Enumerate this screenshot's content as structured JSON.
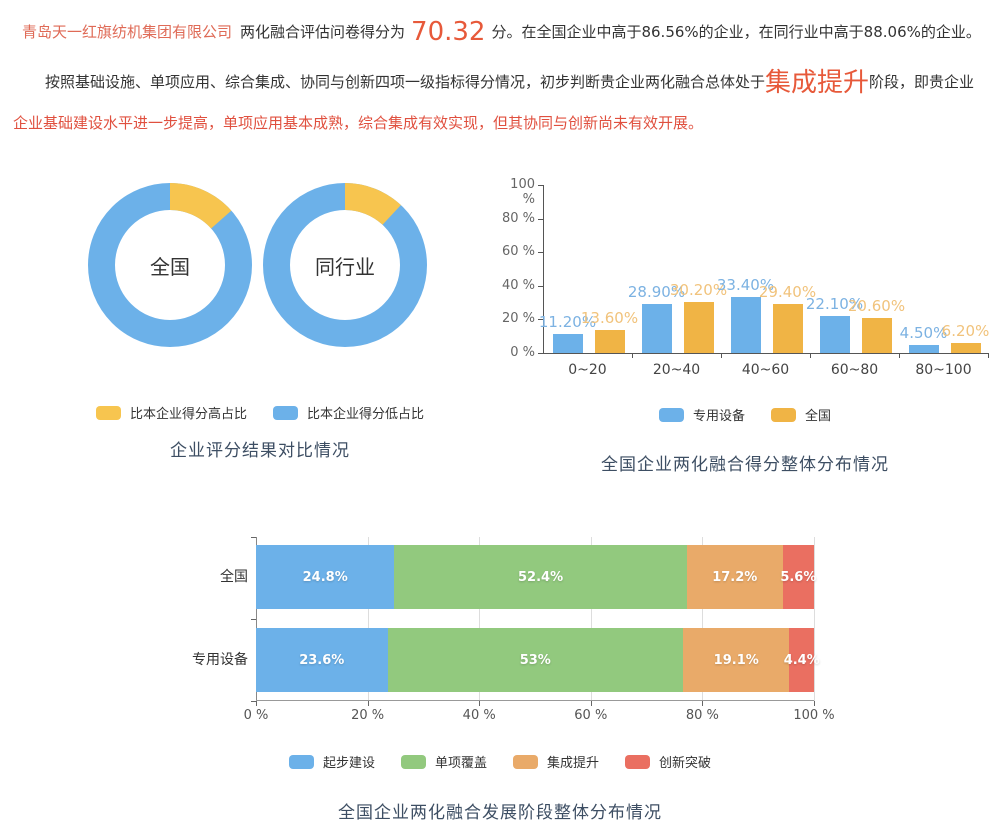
{
  "page": {
    "p1": {
      "company": "青岛天一红旗纺机集团有限公司",
      "lead": "两化融合评估问卷得分为",
      "score": "70.32",
      "tail": "分。在全国企业中高于86.56%的企业，在同行业中高于88.06%的企业。"
    },
    "p2": {
      "prefix": "按照基础设施、单项应用、综合集成、协同与创新四项一级指标得分情况，初步判断贵企业两化融合总体处于",
      "stage": "集成提升",
      "middle": "阶段，即贵企业",
      "detail": "企业基础建设水平进一步提高，单项应用基本成熟，综合集成有效实现，但其协同与创新尚未有效开展。"
    }
  },
  "colors": {
    "blue": "#6cb1e9",
    "donut_yellow": "#f7c54f",
    "bar_orange": "#f0b445",
    "green": "#92c97e",
    "stack_orange": "#e9aa69",
    "red": "#ea6f61",
    "accent_big": "#e7593a",
    "company_red": "#df6a56",
    "detail_red": "#e0503f",
    "title_color": "#3d4e63"
  },
  "chart_data": [
    {
      "type": "pie",
      "subtype": "donut-pair",
      "title": "企业评分结果对比情况",
      "legend": [
        {
          "label": "比本企业得分高占比",
          "color": "#f7c54f"
        },
        {
          "label": "比本企业得分低占比",
          "color": "#6cb1e9"
        }
      ],
      "donuts": [
        {
          "center_label": "全国",
          "slices": [
            {
              "name": "比本企业得分高占比",
              "value": 13.44,
              "color": "#f7c54f"
            },
            {
              "name": "比本企业得分低占比",
              "value": 86.56,
              "color": "#6cb1e9"
            }
          ]
        },
        {
          "center_label": "同行业",
          "slices": [
            {
              "name": "比本企业得分高占比",
              "value": 11.94,
              "color": "#f7c54f"
            },
            {
              "name": "比本企业得分低占比",
              "value": 88.06,
              "color": "#6cb1e9"
            }
          ]
        }
      ]
    },
    {
      "type": "bar",
      "title": "全国企业两化融合得分整体分布情况",
      "categories": [
        "0~20",
        "20~40",
        "40~60",
        "60~80",
        "80~100"
      ],
      "series": [
        {
          "name": "专用设备",
          "color": "#6cb1e9",
          "label_color": "#7cb2e2",
          "values": [
            11.2,
            28.9,
            33.4,
            22.1,
            4.5
          ],
          "labels": [
            "11.20%",
            "28.90%",
            "33.40%",
            "22.10%",
            "4.50%"
          ]
        },
        {
          "name": "全国",
          "color": "#f0b445",
          "label_color": "#f1c37c",
          "values": [
            13.6,
            30.2,
            29.4,
            20.6,
            6.2
          ],
          "labels": [
            "13.60%",
            "30.20%",
            "29.40%",
            "20.60%",
            "6.20%"
          ]
        }
      ],
      "ylim": [
        0,
        100
      ],
      "yticks": [
        "0 %",
        "20 %",
        "40 %",
        "60 %",
        "80 %",
        "100 %"
      ],
      "legend_position": "bottom",
      "grid": false
    },
    {
      "type": "bar",
      "subtype": "horizontal-stacked",
      "title": "全国企业两化融合发展阶段整体分布情况",
      "segments": [
        {
          "name": "起步建设",
          "color": "#6cb1e9"
        },
        {
          "name": "单项覆盖",
          "color": "#92c97e"
        },
        {
          "name": "集成提升",
          "color": "#e9aa69"
        },
        {
          "name": "创新突破",
          "color": "#ea6f61"
        }
      ],
      "rows": [
        {
          "name": "全国",
          "values": [
            24.8,
            52.4,
            17.2,
            5.6
          ],
          "labels": [
            "24.8%",
            "52.4%",
            "17.2%",
            "5.6%"
          ]
        },
        {
          "name": "专用设备",
          "values": [
            23.6,
            53,
            19.1,
            4.4
          ],
          "labels": [
            "23.6%",
            "53%",
            "19.1%",
            "4.4%"
          ]
        }
      ],
      "xlim": [
        0,
        100
      ],
      "xticks": [
        "0 %",
        "20 %",
        "40 %",
        "60 %",
        "80 %",
        "100 %"
      ],
      "grid": true,
      "legend_position": "bottom"
    }
  ]
}
